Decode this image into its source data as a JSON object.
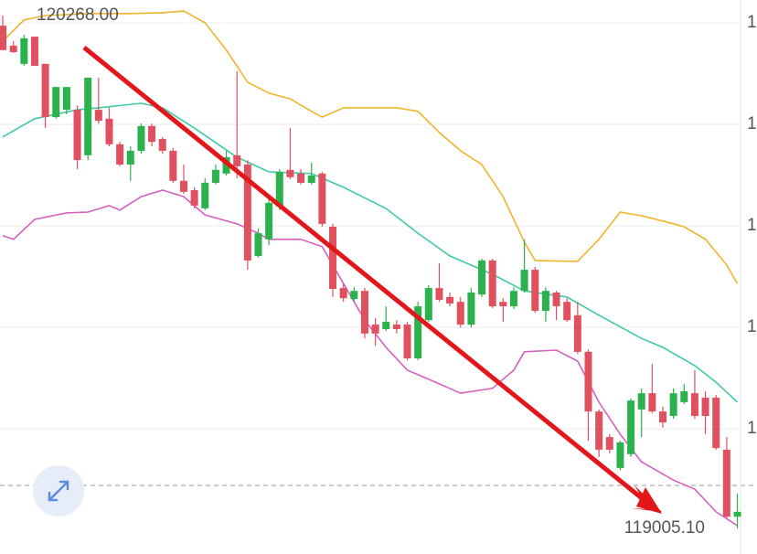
{
  "chart_data": {
    "type": "candlestick",
    "ylim": [
      118942.1,
      120306.3
    ],
    "xlim": [
      -0.26,
      69.3
    ],
    "yticks": [
      {
        "value": 120250,
        "label": "1"
      },
      {
        "value": 120000,
        "label": "1"
      },
      {
        "value": 119750,
        "label": "1"
      },
      {
        "value": 119500,
        "label": "1"
      },
      {
        "value": 119250,
        "label": "1"
      }
    ],
    "grid": true,
    "up_color": "#2bb24c",
    "down_color": "#e0505e",
    "high_label": {
      "value": 120268,
      "label": "120268.00"
    },
    "low_label": {
      "value": 119005.1,
      "label": "119005.10"
    },
    "current_price": {
      "value": 119111
    },
    "ohlc": [
      [
        120243,
        120268,
        120183,
        120183
      ],
      [
        120194,
        120205,
        120176,
        120178
      ],
      [
        120149,
        120221,
        120144,
        120212
      ],
      [
        120216,
        120216,
        120144,
        120144
      ],
      [
        120149,
        120149,
        119991,
        120018
      ],
      [
        120018,
        120092,
        120014,
        120092
      ],
      [
        120036,
        120092,
        120025,
        120092
      ],
      [
        120036,
        120047,
        119890,
        119912
      ],
      [
        119924,
        120115,
        119912,
        120115
      ],
      [
        120036,
        120115,
        120002,
        120009
      ],
      [
        120014,
        120041,
        119946,
        119951
      ],
      [
        119951,
        119957,
        119897,
        119901
      ],
      [
        119901,
        119946,
        119861,
        119935
      ],
      [
        119935,
        120002,
        119928,
        119996
      ],
      [
        119996,
        120002,
        119946,
        119957
      ],
      [
        119964,
        119969,
        119928,
        119935
      ],
      [
        119935,
        119942,
        119856,
        119861
      ],
      [
        119861,
        119901,
        119829,
        119834
      ],
      [
        119838,
        119845,
        119793,
        119800
      ],
      [
        119793,
        119867,
        119789,
        119856
      ],
      [
        119856,
        119901,
        119852,
        119888
      ],
      [
        119879,
        119935,
        119874,
        119919
      ],
      [
        119924,
        120131,
        119867,
        119897
      ],
      [
        119901,
        119912,
        119642,
        119665
      ],
      [
        119676,
        119744,
        119672,
        119732
      ],
      [
        119717,
        119816,
        119703,
        119807
      ],
      [
        119798,
        119890,
        119789,
        119883
      ],
      [
        119888,
        119991,
        119865,
        119870
      ],
      [
        119879,
        119890,
        119852,
        119856
      ],
      [
        119856,
        119906,
        119852,
        119874
      ],
      [
        119879,
        119883,
        119748,
        119755
      ],
      [
        119748,
        119755,
        119575,
        119595
      ],
      [
        119597,
        119608,
        119563,
        119572
      ],
      [
        119570,
        119599,
        119563,
        119590
      ],
      [
        119590,
        119597,
        119473,
        119485
      ],
      [
        119507,
        119523,
        119455,
        119485
      ],
      [
        119496,
        119552,
        119491,
        119514
      ],
      [
        119507,
        119518,
        119485,
        119496
      ],
      [
        119507,
        119514,
        119419,
        119424
      ],
      [
        119424,
        119563,
        119419,
        119552
      ],
      [
        119518,
        119604,
        119514,
        119597
      ],
      [
        119597,
        119658,
        119563,
        119568
      ],
      [
        119575,
        119586,
        119552,
        119559
      ],
      [
        119563,
        119575,
        119500,
        119507
      ],
      [
        119507,
        119597,
        119500,
        119586
      ],
      [
        119581,
        119669,
        119575,
        119665
      ],
      [
        119665,
        119669,
        119548,
        119552
      ],
      [
        119563,
        119572,
        119514,
        119552
      ],
      [
        119552,
        119599,
        119545,
        119590
      ],
      [
        119590,
        119717,
        119586,
        119642
      ],
      [
        119642,
        119649,
        119536,
        119541
      ],
      [
        119541,
        119599,
        119514,
        119590
      ],
      [
        119586,
        119590,
        119518,
        119552
      ],
      [
        119563,
        119572,
        119514,
        119518
      ],
      [
        119530,
        119563,
        119435,
        119440
      ],
      [
        119440,
        119446,
        119221,
        119293
      ],
      [
        119293,
        119298,
        119181,
        119199
      ],
      [
        119230,
        119237,
        119190,
        119199
      ],
      [
        119154,
        119221,
        119149,
        119217
      ],
      [
        119188,
        119325,
        119181,
        119320
      ],
      [
        119298,
        119350,
        119230,
        119338
      ],
      [
        119338,
        119410,
        119289,
        119293
      ],
      [
        119293,
        119305,
        119253,
        119266
      ],
      [
        119282,
        119350,
        119275,
        119338
      ],
      [
        119316,
        119361,
        119311,
        119343
      ],
      [
        119338,
        119395,
        119275,
        119282
      ],
      [
        119327,
        119343,
        119237,
        119282
      ],
      [
        119327,
        119334,
        119199,
        119203
      ],
      [
        119199,
        119230,
        119030,
        119034
      ],
      [
        119034,
        119091,
        119005.1,
        119046
      ]
    ],
    "bands": [
      {
        "color": "#f0b429",
        "x": [
          0,
          2,
          4,
          8,
          12,
          15,
          17,
          19,
          21,
          23,
          25,
          27,
          29,
          30,
          32,
          35,
          37,
          39,
          41,
          43,
          45,
          47,
          49,
          50,
          53,
          54,
          56,
          58,
          60,
          62,
          64,
          66,
          68,
          69
        ],
        "values": [
          120205,
          120257,
          120268,
          120273,
          120273,
          120275,
          120279,
          120250,
          120183,
          120104,
          120077,
          120063,
          120032,
          120018,
          120041,
          120041,
          120041,
          120032,
          119980,
          119935,
          119901,
          119822,
          119710,
          119665,
          119663,
          119663,
          119717,
          119784,
          119775,
          119762,
          119748,
          119717,
          119654,
          119608
        ]
      },
      {
        "color": "#3ec9a7",
        "x": [
          0,
          3,
          7,
          9,
          13,
          15,
          18,
          22,
          25,
          29,
          32,
          36,
          39,
          42,
          46,
          49,
          53,
          56,
          60,
          62,
          65,
          67,
          69
        ],
        "values": [
          119969,
          120014,
          120036,
          120041,
          120052,
          120041,
          119991,
          119919,
          119883,
          119879,
          119845,
          119793,
          119732,
          119676,
          119631,
          119590,
          119575,
          119530,
          119473,
          119451,
          119406,
          119365,
          119316
        ]
      },
      {
        "color": "#d660c0",
        "x": [
          0,
          1,
          3,
          6,
          8,
          10,
          11,
          13,
          15,
          17,
          19,
          22,
          24,
          25,
          28,
          30,
          32,
          34,
          36,
          38,
          41,
          43,
          46,
          48,
          49,
          52,
          54,
          56,
          58,
          60,
          63,
          65,
          67,
          69
        ],
        "values": [
          119726,
          119717,
          119766,
          119782,
          119784,
          119800,
          119789,
          119822,
          119838,
          119822,
          119777,
          119755,
          119732,
          119717,
          119717,
          119699,
          119608,
          119518,
          119451,
          119395,
          119361,
          119338,
          119350,
          119395,
          119440,
          119444,
          119417,
          119316,
          119237,
          119169,
          119124,
          119102,
          119046,
          119012
        ]
      }
    ]
  }
}
